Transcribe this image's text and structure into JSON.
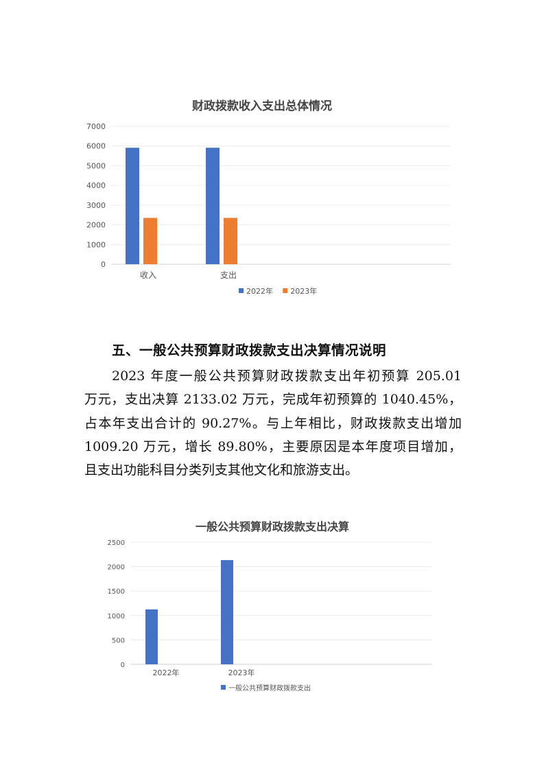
{
  "chart_data": [
    {
      "type": "bar",
      "title": "财政拨款收入支出总体情况",
      "categories": [
        "收入",
        "支出"
      ],
      "series": [
        {
          "name": "2022年",
          "values": [
            5910,
            5910
          ],
          "color": "#4472C4"
        },
        {
          "name": "2023年",
          "values": [
            2350,
            2350
          ],
          "color": "#ED7D31"
        }
      ],
      "ylim": [
        0,
        7000
      ],
      "yticks": [
        0,
        1000,
        2000,
        3000,
        4000,
        5000,
        6000,
        7000
      ],
      "grid": true,
      "legend": "bottom"
    },
    {
      "type": "bar",
      "title": "一般公共预算财政拨款支出决算",
      "categories": [
        "2022年",
        "2023年"
      ],
      "series": [
        {
          "name": "一般公共预算财政拨款支出",
          "values": [
            1123.82,
            2133.02
          ],
          "color": "#4472C4"
        }
      ],
      "ylim": [
        0,
        2500
      ],
      "yticks": [
        0,
        500,
        1000,
        1500,
        2000,
        2500
      ],
      "grid": true,
      "legend": "bottom"
    }
  ],
  "section": {
    "heading": "五、一般公共预算财政拨款支出决算情况说明",
    "lines": [
      "2023 年度一般公共预算财政拨款支出年初预算 205.01",
      "万元，支出决算 2133.02 万元，完成年初预算的 1040.45%，",
      "占本年支出合计的 90.27%。与上年相比，财政拨款支出增加",
      "1009.20 万元，增长 89.80%，主要原因是本年度项目增加，",
      "且支出功能科目分类列支其他文化和旅游支出。"
    ]
  }
}
